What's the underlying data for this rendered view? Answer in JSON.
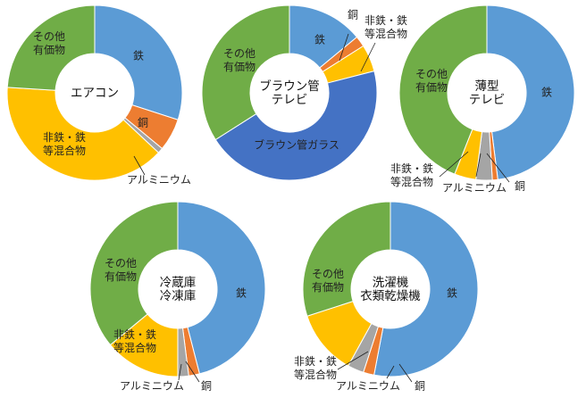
{
  "colors": {
    "iron": "#5b9bd5",
    "copper": "#ed7d31",
    "aluminium": "#a5a5a5",
    "nonferrous": "#ffc000",
    "crt_glass": "#4472c4",
    "other": "#70ad47"
  },
  "chart_data": [
    {
      "type": "donut",
      "center_label": [
        "エアコン"
      ],
      "slices": [
        {
          "key": "iron",
          "label": "鉄",
          "value": 30
        },
        {
          "key": "copper",
          "label": "銅",
          "value": 6
        },
        {
          "key": "aluminium",
          "label": "アルミニウム",
          "value": 1
        },
        {
          "key": "nonferrous",
          "label": "非鉄・鉄\n等混合物",
          "value": 39
        },
        {
          "key": "other",
          "label": "その他\n有価物",
          "value": 24
        }
      ]
    },
    {
      "type": "donut",
      "center_label": [
        "ブラウン管",
        "テレビ"
      ],
      "slices": [
        {
          "key": "iron",
          "label": "鉄",
          "value": 14
        },
        {
          "key": "copper",
          "label": "銅",
          "value": 2
        },
        {
          "key": "nonferrous",
          "label": "非鉄・鉄\n等混合物",
          "value": 5
        },
        {
          "key": "crt_glass",
          "label": "ブラウン管ガラス",
          "value": 45
        },
        {
          "key": "other",
          "label": "その他\n有価物",
          "value": 34
        }
      ]
    },
    {
      "type": "donut",
      "center_label": [
        "薄型",
        "テレビ"
      ],
      "slices": [
        {
          "key": "iron",
          "label": "鉄",
          "value": 48
        },
        {
          "key": "copper",
          "label": "銅",
          "value": 1
        },
        {
          "key": "aluminium",
          "label": "アルミニウム",
          "value": 3
        },
        {
          "key": "nonferrous",
          "label": "非鉄・鉄\n等混合物",
          "value": 4
        },
        {
          "key": "other",
          "label": "その他\n有価物",
          "value": 44
        }
      ]
    },
    {
      "type": "donut",
      "center_label": [
        "冷蔵庫",
        "冷凍庫"
      ],
      "slices": [
        {
          "key": "iron",
          "label": "鉄",
          "value": 46
        },
        {
          "key": "copper",
          "label": "銅",
          "value": 2
        },
        {
          "key": "aluminium",
          "label": "アルミニウム",
          "value": 2
        },
        {
          "key": "nonferrous",
          "label": "非鉄・鉄\n等混合物",
          "value": 14
        },
        {
          "key": "other",
          "label": "その他\n有価物",
          "value": 36
        }
      ]
    },
    {
      "type": "donut",
      "center_label": [
        "洗濯機",
        "衣類乾燥機"
      ],
      "slices": [
        {
          "key": "iron",
          "label": "鉄",
          "value": 53
        },
        {
          "key": "copper",
          "label": "銅",
          "value": 2
        },
        {
          "key": "aluminium",
          "label": "アルミニウム",
          "value": 3
        },
        {
          "key": "nonferrous",
          "label": "非鉄・鉄\n等混合物",
          "value": 12
        },
        {
          "key": "other",
          "label": "その他\n有価物",
          "value": 30
        }
      ]
    }
  ]
}
